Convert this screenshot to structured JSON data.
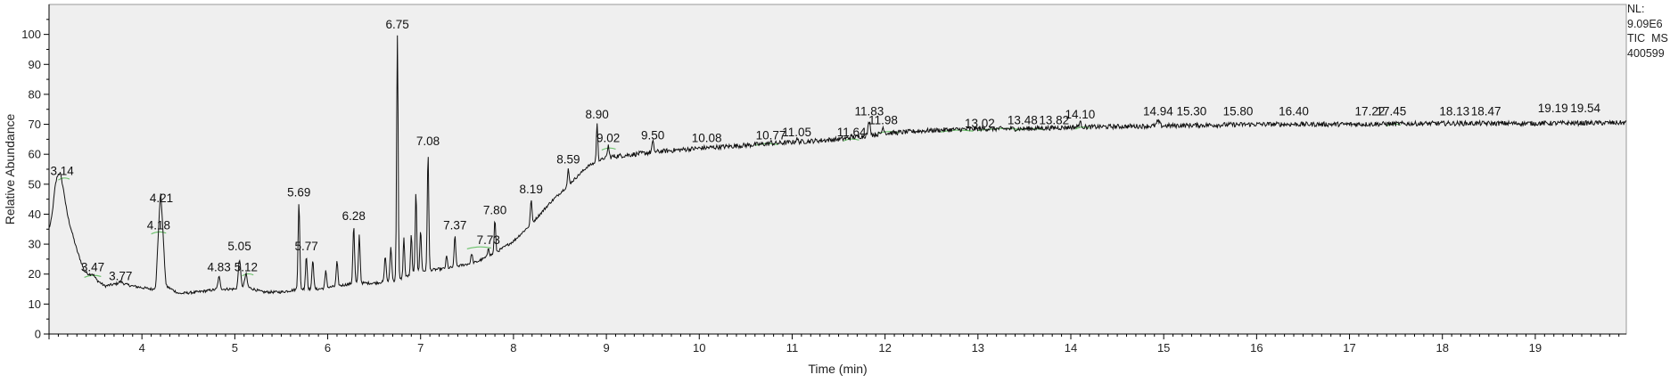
{
  "info": {
    "nl_label": "NL:",
    "nl_value": "9.09E6",
    "scan_label": "TIC  MS",
    "file_id": "400599"
  },
  "colors": {
    "trace": "#111111",
    "plot_bg": "#efefef",
    "baseline": "#6cc26c",
    "axis": "#000000"
  },
  "chart_data": {
    "type": "line",
    "title": "",
    "xlabel": "Time (min)",
    "ylabel": "Relative Abundance",
    "xlim": [
      3.0,
      19.98
    ],
    "ylim": [
      0,
      110
    ],
    "grid": false,
    "legend": "none",
    "x_ticks": [
      4,
      5,
      6,
      7,
      8,
      9,
      10,
      11,
      12,
      13,
      14,
      15,
      16,
      17,
      18,
      19
    ],
    "y_ticks": [
      0,
      10,
      20,
      30,
      40,
      50,
      60,
      70,
      80,
      90,
      100
    ],
    "baseline_points": [
      [
        3.0,
        35
      ],
      [
        3.08,
        38
      ],
      [
        3.12,
        45
      ],
      [
        3.17,
        43
      ],
      [
        3.22,
        37
      ],
      [
        3.3,
        28
      ],
      [
        3.38,
        21
      ],
      [
        3.47,
        19
      ],
      [
        3.6,
        16
      ],
      [
        3.77,
        17
      ],
      [
        3.9,
        16
      ],
      [
        4.1,
        15
      ],
      [
        4.15,
        15
      ],
      [
        4.2,
        37
      ],
      [
        4.26,
        16
      ],
      [
        4.4,
        13.5
      ],
      [
        4.6,
        14
      ],
      [
        4.83,
        15
      ],
      [
        5.0,
        15
      ],
      [
        5.1,
        16
      ],
      [
        5.3,
        14
      ],
      [
        5.5,
        14
      ],
      [
        5.69,
        15
      ],
      [
        5.9,
        15
      ],
      [
        6.1,
        16
      ],
      [
        6.3,
        17
      ],
      [
        6.5,
        17
      ],
      [
        6.75,
        18
      ],
      [
        7.0,
        21
      ],
      [
        7.3,
        22
      ],
      [
        7.6,
        24
      ],
      [
        7.8,
        27
      ],
      [
        8.0,
        31
      ],
      [
        8.2,
        37
      ],
      [
        8.4,
        44
      ],
      [
        8.6,
        50
      ],
      [
        8.8,
        56
      ],
      [
        9.0,
        59
      ],
      [
        9.3,
        60
      ],
      [
        9.6,
        61
      ],
      [
        10.0,
        62
      ],
      [
        10.5,
        63
      ],
      [
        11.0,
        64
      ],
      [
        11.5,
        65
      ],
      [
        12.0,
        67
      ],
      [
        12.5,
        68
      ],
      [
        13.0,
        68.5
      ],
      [
        13.5,
        68.5
      ],
      [
        14.0,
        69
      ],
      [
        15.0,
        69.5
      ],
      [
        16.0,
        70
      ],
      [
        17.0,
        70
      ],
      [
        18.0,
        70.3
      ],
      [
        19.0,
        70.3
      ],
      [
        19.98,
        70.5
      ]
    ],
    "peaks": [
      {
        "rt": 3.08,
        "height": 51,
        "width": 0.03
      },
      {
        "rt": 3.14,
        "height": 49,
        "width": 0.025
      },
      {
        "rt": 3.47,
        "height": 20,
        "width": 0.02
      },
      {
        "rt": 3.77,
        "height": 17.5,
        "width": 0.02
      },
      {
        "rt": 4.18,
        "height": 33,
        "width": 0.02
      },
      {
        "rt": 4.21,
        "height": 42,
        "width": 0.02
      },
      {
        "rt": 4.83,
        "height": 19,
        "width": 0.012
      },
      {
        "rt": 5.05,
        "height": 25,
        "width": 0.012
      },
      {
        "rt": 5.12,
        "height": 20,
        "width": 0.012
      },
      {
        "rt": 5.69,
        "height": 44,
        "width": 0.009
      },
      {
        "rt": 5.77,
        "height": 26,
        "width": 0.009
      },
      {
        "rt": 5.84,
        "height": 25,
        "width": 0.009
      },
      {
        "rt": 5.98,
        "height": 21,
        "width": 0.009
      },
      {
        "rt": 6.1,
        "height": 24,
        "width": 0.009
      },
      {
        "rt": 6.28,
        "height": 36,
        "width": 0.009
      },
      {
        "rt": 6.34,
        "height": 33,
        "width": 0.009
      },
      {
        "rt": 6.62,
        "height": 26,
        "width": 0.009
      },
      {
        "rt": 6.68,
        "height": 29,
        "width": 0.009
      },
      {
        "rt": 6.75,
        "height": 100,
        "width": 0.008
      },
      {
        "rt": 6.82,
        "height": 32,
        "width": 0.008
      },
      {
        "rt": 6.9,
        "height": 33,
        "width": 0.008
      },
      {
        "rt": 6.95,
        "height": 48,
        "width": 0.008
      },
      {
        "rt": 7.0,
        "height": 35,
        "width": 0.008
      },
      {
        "rt": 7.08,
        "height": 61,
        "width": 0.008
      },
      {
        "rt": 7.28,
        "height": 26,
        "width": 0.008
      },
      {
        "rt": 7.37,
        "height": 33,
        "width": 0.008
      },
      {
        "rt": 7.55,
        "height": 27,
        "width": 0.008
      },
      {
        "rt": 7.73,
        "height": 29,
        "width": 0.008
      },
      {
        "rt": 7.8,
        "height": 38,
        "width": 0.008
      },
      {
        "rt": 8.19,
        "height": 45,
        "width": 0.008
      },
      {
        "rt": 8.59,
        "height": 55,
        "width": 0.008
      },
      {
        "rt": 8.9,
        "height": 70,
        "width": 0.008
      },
      {
        "rt": 9.02,
        "height": 63,
        "width": 0.008
      },
      {
        "rt": 9.5,
        "height": 64,
        "width": 0.01
      },
      {
        "rt": 10.08,
        "height": 62,
        "width": 0.012
      },
      {
        "rt": 10.77,
        "height": 64,
        "width": 0.012
      },
      {
        "rt": 11.05,
        "height": 65,
        "width": 0.012
      },
      {
        "rt": 11.64,
        "height": 66,
        "width": 0.012
      },
      {
        "rt": 11.83,
        "height": 71,
        "width": 0.012
      },
      {
        "rt": 11.98,
        "height": 69,
        "width": 0.012
      },
      {
        "rt": 14.1,
        "height": 70.5,
        "width": 0.015
      },
      {
        "rt": 14.94,
        "height": 71,
        "width": 0.015
      }
    ],
    "peak_labels": [
      {
        "text": "3.14",
        "x": 3.14,
        "y": 53
      },
      {
        "text": "3.47",
        "x": 3.47,
        "y": 21
      },
      {
        "text": "3.77",
        "x": 3.77,
        "y": 18
      },
      {
        "text": "4.18",
        "x": 4.18,
        "y": 35
      },
      {
        "text": "4.21",
        "x": 4.21,
        "y": 44
      },
      {
        "text": "4.83",
        "x": 4.83,
        "y": 21
      },
      {
        "text": "5.05",
        "x": 5.05,
        "y": 28
      },
      {
        "text": "5.12",
        "x": 5.12,
        "y": 21
      },
      {
        "text": "5.69",
        "x": 5.69,
        "y": 46
      },
      {
        "text": "5.77",
        "x": 5.77,
        "y": 28
      },
      {
        "text": "6.28",
        "x": 6.28,
        "y": 38
      },
      {
        "text": "6.75",
        "x": 6.75,
        "y": 102
      },
      {
        "text": "7.08",
        "x": 7.08,
        "y": 63
      },
      {
        "text": "7.37",
        "x": 7.37,
        "y": 35
      },
      {
        "text": "7.73",
        "x": 7.73,
        "y": 30
      },
      {
        "text": "7.80",
        "x": 7.8,
        "y": 40
      },
      {
        "text": "8.19",
        "x": 8.19,
        "y": 47
      },
      {
        "text": "8.59",
        "x": 8.59,
        "y": 57
      },
      {
        "text": "8.90",
        "x": 8.9,
        "y": 72
      },
      {
        "text": "9.02",
        "x": 9.02,
        "y": 64
      },
      {
        "text": "9.50",
        "x": 9.5,
        "y": 65
      },
      {
        "text": "10.08",
        "x": 10.08,
        "y": 64
      },
      {
        "text": "10.77",
        "x": 10.77,
        "y": 65
      },
      {
        "text": "11.05",
        "x": 11.05,
        "y": 66
      },
      {
        "text": "11.64",
        "x": 11.64,
        "y": 66
      },
      {
        "text": "11.83",
        "x": 11.83,
        "y": 73
      },
      {
        "text": "11.98",
        "x": 11.98,
        "y": 70
      },
      {
        "text": "13.02",
        "x": 13.02,
        "y": 69
      },
      {
        "text": "13.48",
        "x": 13.48,
        "y": 70
      },
      {
        "text": "13.82",
        "x": 13.82,
        "y": 70
      },
      {
        "text": "14.10",
        "x": 14.1,
        "y": 72
      },
      {
        "text": "14.94",
        "x": 14.94,
        "y": 73
      },
      {
        "text": "15.30",
        "x": 15.3,
        "y": 73
      },
      {
        "text": "15.80",
        "x": 15.8,
        "y": 73
      },
      {
        "text": "16.40",
        "x": 16.4,
        "y": 73
      },
      {
        "text": "17.22",
        "x": 17.22,
        "y": 73
      },
      {
        "text": "17.45",
        "x": 17.45,
        "y": 73
      },
      {
        "text": "18.13",
        "x": 18.13,
        "y": 73
      },
      {
        "text": "18.47",
        "x": 18.47,
        "y": 73
      },
      {
        "text": "19.19",
        "x": 19.19,
        "y": 74
      },
      {
        "text": "19.54",
        "x": 19.54,
        "y": 74
      }
    ],
    "integration_marks": [
      {
        "x": [
          3.1,
          3.22
        ],
        "y": 52
      },
      {
        "x": [
          3.38,
          3.56
        ],
        "y": 19.5
      },
      {
        "x": [
          4.1,
          4.26
        ],
        "y": 34
      },
      {
        "x": [
          5.08,
          5.2
        ],
        "y": 20
      },
      {
        "x": [
          7.5,
          7.76
        ],
        "y": 29
      },
      {
        "x": [
          8.95,
          9.1
        ],
        "y": 62
      },
      {
        "x": [
          10.6,
          10.85
        ],
        "y": 63.5
      },
      {
        "x": [
          11.55,
          11.72
        ],
        "y": 65
      },
      {
        "x": [
          11.92,
          12.15
        ],
        "y": 67.5
      },
      {
        "x": [
          12.6,
          12.95
        ],
        "y": 68
      },
      {
        "x": [
          13.0,
          13.5
        ],
        "y": 68.5
      },
      {
        "x": [
          13.4,
          13.7
        ],
        "y": 68.5
      },
      {
        "x": [
          14.05,
          14.2
        ],
        "y": 69
      },
      {
        "x": [
          17.4,
          17.55
        ],
        "y": 70
      }
    ]
  }
}
